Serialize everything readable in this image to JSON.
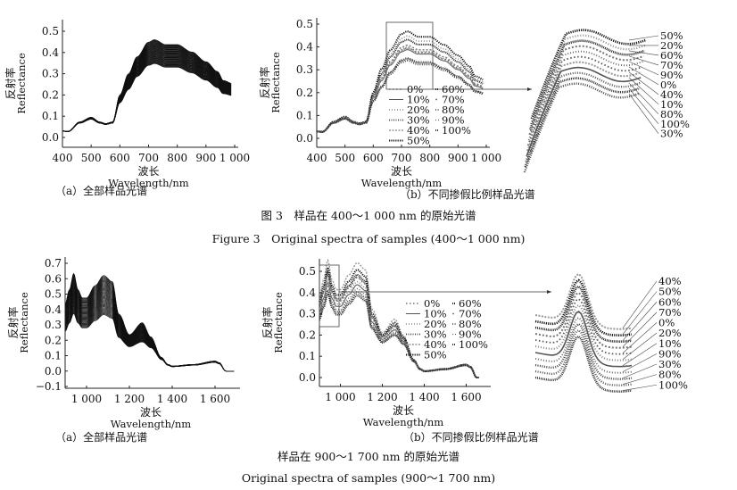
{
  "figure3": {
    "title_cn": "图 3　样品在 400～1 000 nm 的原始光谱",
    "title_en": "Figure 3　Original spectra of samples (400～1 000 nm)",
    "caption_a": "（a）全部样品光谱",
    "caption_b": "（b）不同掺假比例样品光谱"
  },
  "figure4": {
    "title_cn": "样品在 900～1 700 nm 的原始光谱",
    "title_en": "Original spectra of samples (900～1 700 nm)",
    "caption_a": "（a）全部样品光谱",
    "caption_b": "（b）不同掺假比例样品光谱"
  },
  "axis_text": {
    "xlabel_cn": "波长",
    "xlabel_en": "Wavelength/nm",
    "ylabel_cn": "反射率",
    "ylabel_en": "Reflectance"
  },
  "chart_data": [
    {
      "id": "vnir_all",
      "type": "line",
      "xlabel": "波长 Wavelength/nm",
      "ylabel": "反射率 Reflectance",
      "xlim": [
        400,
        1000
      ],
      "ylim": [
        0,
        0.5
      ],
      "xticks": [
        400,
        500,
        600,
        700,
        800,
        900,
        1000
      ],
      "xtick_labels": [
        "400",
        "500",
        "600",
        "700",
        "800",
        "900",
        "1 000"
      ],
      "yticks": [
        0,
        0.1,
        0.2,
        0.3,
        0.4,
        0.5
      ],
      "ytick_labels": [
        "0.0",
        "0.1",
        "0.2",
        "0.3",
        "0.4",
        "0.5"
      ],
      "mean_spectrum": {
        "x": [
          400,
          420,
          460,
          500,
          530,
          550,
          575,
          600,
          630,
          660,
          700,
          720,
          760,
          800,
          850,
          900,
          940,
          960,
          1000
        ],
        "y": [
          0.03,
          0.028,
          0.07,
          0.09,
          0.07,
          0.063,
          0.07,
          0.18,
          0.26,
          0.33,
          0.39,
          0.4,
          0.38,
          0.38,
          0.35,
          0.31,
          0.27,
          0.235,
          0.22
        ]
      },
      "sample_scale_range": [
        0.87,
        1.15
      ]
    },
    {
      "id": "vnir_ratio",
      "type": "line",
      "xlabel": "波长 Wavelength/nm",
      "ylabel": "反射率 Reflectance",
      "xlim": [
        400,
        1000
      ],
      "ylim": [
        0,
        0.5
      ],
      "xticks": [
        400,
        500,
        600,
        700,
        800,
        900,
        1000
      ],
      "xtick_labels": [
        "400",
        "500",
        "600",
        "700",
        "800",
        "900",
        "1 000"
      ],
      "yticks": [
        0,
        0.1,
        0.2,
        0.3,
        0.4,
        0.5
      ],
      "ytick_labels": [
        "0.0",
        "0.1",
        "0.2",
        "0.3",
        "0.4",
        "0.5"
      ],
      "legend": {
        "placement": "center-right"
      },
      "series": [
        {
          "name": "0%",
          "scale": 0.99
        },
        {
          "name": "10%",
          "scale": 0.97
        },
        {
          "name": "20%",
          "scale": 1.12
        },
        {
          "name": "30%",
          "scale": 0.85
        },
        {
          "name": "40%",
          "scale": 0.98
        },
        {
          "name": "50%",
          "scale": 1.17
        },
        {
          "name": "60%",
          "scale": 1.08
        },
        {
          "name": "70%",
          "scale": 1.02
        },
        {
          "name": "80%",
          "scale": 0.88
        },
        {
          "name": "90%",
          "scale": 1.0
        },
        {
          "name": "100%",
          "scale": 0.87
        }
      ],
      "inset_order": [
        "50%",
        "20%",
        "60%",
        "70%",
        "90%",
        "0%",
        "40%",
        "10%",
        "80%",
        "100%",
        "30%"
      ]
    },
    {
      "id": "nir_all",
      "type": "line",
      "xlabel": "波长 Wavelength/nm",
      "ylabel": "反射率 Reflectance",
      "xlim": [
        900,
        1700
      ],
      "ylim": [
        -0.1,
        0.7
      ],
      "xticks": [
        1000,
        1200,
        1400,
        1600
      ],
      "xtick_labels": [
        "1 000",
        "1 200",
        "1 400",
        "1 600"
      ],
      "yticks": [
        -0.1,
        0,
        0.1,
        0.2,
        0.3,
        0.4,
        0.5,
        0.6,
        0.7
      ],
      "ytick_labels": [
        "−0.1",
        "0.0",
        "0.1",
        "0.2",
        "0.3",
        "0.4",
        "0.5",
        "0.6",
        "0.7"
      ],
      "mean_spectrum": {
        "x": [
          900,
          920,
          940,
          960,
          980,
          1000,
          1040,
          1080,
          1120,
          1150,
          1200,
          1260,
          1300,
          1350,
          1380,
          1400,
          1500,
          1600,
          1620,
          1650,
          1700
        ],
        "y": [
          0.33,
          0.4,
          0.48,
          0.4,
          0.36,
          0.36,
          0.42,
          0.47,
          0.44,
          0.28,
          0.19,
          0.24,
          0.18,
          0.08,
          0.04,
          0.03,
          0.04,
          0.06,
          0.05,
          0.0,
          0.0
        ]
      },
      "sample_scale_range": [
        0.78,
        1.32
      ]
    },
    {
      "id": "nir_ratio",
      "type": "line",
      "xlabel": "波长 Wavelength/nm",
      "ylabel": "反射率 Reflectance",
      "xlim": [
        900,
        1700
      ],
      "ylim": [
        0,
        0.5
      ],
      "xticks": [
        1000,
        1200,
        1400,
        1600
      ],
      "xtick_labels": [
        "1 000",
        "1 200",
        "1 400",
        "1 600"
      ],
      "yticks": [
        0,
        0.1,
        0.2,
        0.3,
        0.4,
        0.5
      ],
      "ytick_labels": [
        "0.0",
        "0.1",
        "0.2",
        "0.3",
        "0.4",
        "0.5"
      ],
      "legend": {
        "placement": "center-right"
      },
      "series": [
        {
          "name": "0%",
          "scale": 1.0
        },
        {
          "name": "10%",
          "scale": 0.93
        },
        {
          "name": "20%",
          "scale": 0.96
        },
        {
          "name": "30%",
          "scale": 0.86
        },
        {
          "name": "40%",
          "scale": 1.15
        },
        {
          "name": "50%",
          "scale": 1.08
        },
        {
          "name": "60%",
          "scale": 1.03
        },
        {
          "name": "70%",
          "scale": 1.01
        },
        {
          "name": "80%",
          "scale": 0.84
        },
        {
          "name": "90%",
          "scale": 0.89
        },
        {
          "name": "100%",
          "scale": 0.82
        }
      ],
      "inset_order": [
        "40%",
        "50%",
        "60%",
        "70%",
        "0%",
        "20%",
        "10%",
        "90%",
        "30%",
        "80%",
        "100%"
      ]
    }
  ]
}
